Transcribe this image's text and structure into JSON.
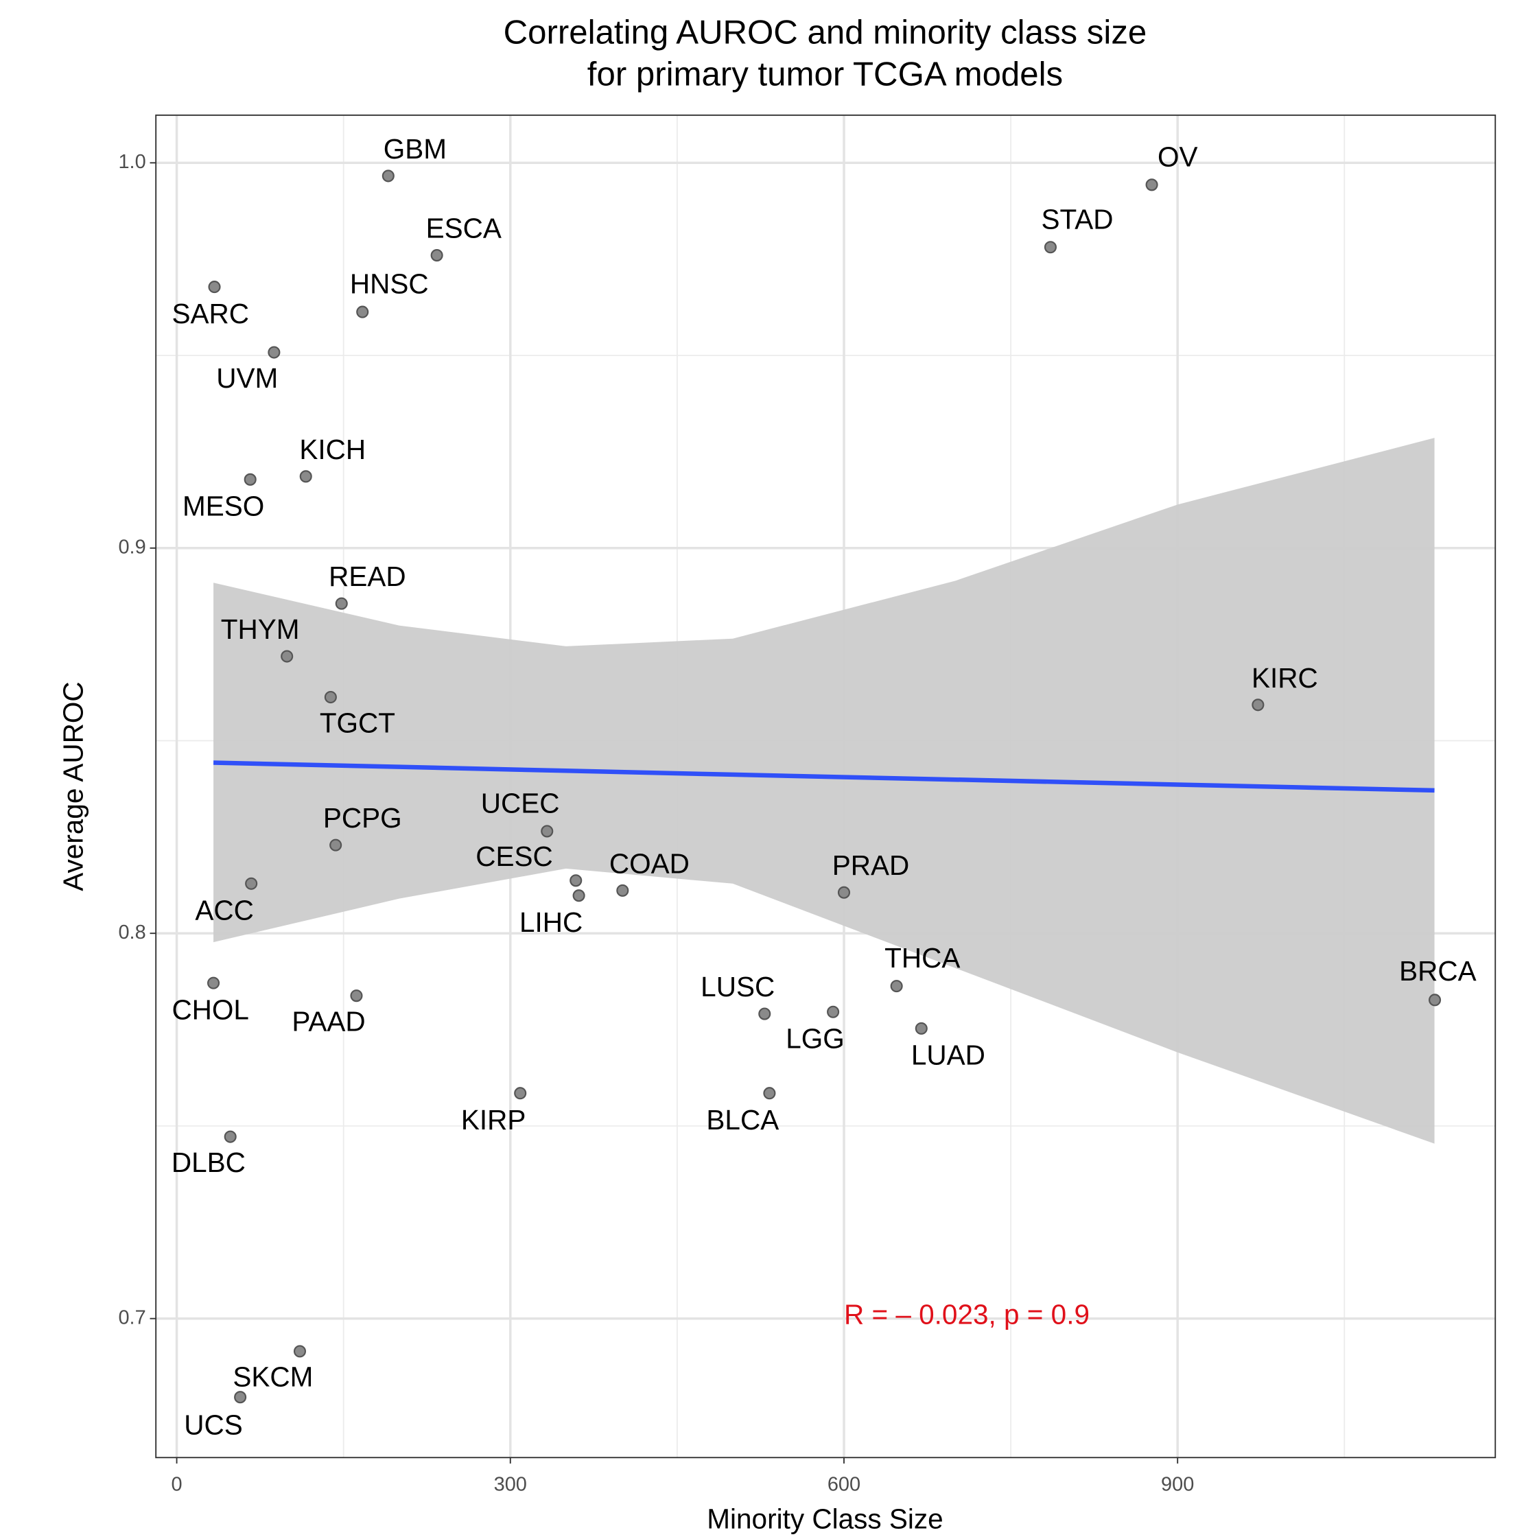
{
  "chart_data": {
    "type": "scatter",
    "title": [
      "Correlating AUROC and minority class size",
      "for primary tumor TCGA models"
    ],
    "x_label": "Minority Class Size",
    "y_label": "Average AUROC",
    "annotation": "R = – 0.023, p = 0.9",
    "xlim": [
      -18.75,
      1185.7
    ],
    "ylim": [
      0.66392,
      1.01237
    ],
    "xticks": [
      0,
      300,
      600,
      900
    ],
    "x_minor_ticks": [
      150,
      450,
      750,
      1050
    ],
    "yticks": [
      {
        "value": 0.7,
        "label": "0.7"
      },
      0.8,
      0.9,
      {
        "value": 1.0,
        "label": "1.0"
      }
    ],
    "y_minor_ticks": [
      0.75,
      0.85,
      0.95
    ],
    "grid": true,
    "point_color": "#8a8a8a",
    "line_color": "#3050f8",
    "band_color": "#cccccc",
    "points": [
      {
        "label": "GBM",
        "x": 190.2,
        "y": 0.9966
      },
      {
        "label": "ESCA",
        "x": 233.9,
        "y": 0.976
      },
      {
        "label": "OV",
        "x": 876.8,
        "y": 0.9943
      },
      {
        "label": "STAD",
        "x": 785.7,
        "y": 0.9781
      },
      {
        "label": "SARC",
        "x": 33.9,
        "y": 0.9678
      },
      {
        "label": "HNSC",
        "x": 167,
        "y": 0.9613
      },
      {
        "label": "UVM",
        "x": 87.5,
        "y": 0.9508
      },
      {
        "label": "KICH",
        "x": 116.1,
        "y": 0.9186
      },
      {
        "label": "MESO",
        "x": 66.1,
        "y": 0.9178
      },
      {
        "label": "READ",
        "x": 148.2,
        "y": 0.8856
      },
      {
        "label": "THYM",
        "x": 99.1,
        "y": 0.8719
      },
      {
        "label": "TGCT",
        "x": 138.4,
        "y": 0.8613
      },
      {
        "label": "KIRC",
        "x": 972.3,
        "y": 0.8593
      },
      {
        "label": "UCEC",
        "x": 333,
        "y": 0.8265
      },
      {
        "label": "PCPG",
        "x": 142.9,
        "y": 0.8229
      },
      {
        "label": "CESC",
        "x": 358.9,
        "y": 0.8137
      },
      {
        "label": "LIHC",
        "x": 361.6,
        "y": 0.8098
      },
      {
        "label": "COAD",
        "x": 400.9,
        "y": 0.8111
      },
      {
        "label": "PRAD",
        "x": 600,
        "y": 0.8106
      },
      {
        "label": "ACC",
        "x": 67,
        "y": 0.8129
      },
      {
        "label": "CHOL",
        "x": 33,
        "y": 0.7871
      },
      {
        "label": "PAAD",
        "x": 161.6,
        "y": 0.7838
      },
      {
        "label": "THCA",
        "x": 647.3,
        "y": 0.7863
      },
      {
        "label": "BRCA",
        "x": 1131.3,
        "y": 0.7827
      },
      {
        "label": "LUSC",
        "x": 528.6,
        "y": 0.7791
      },
      {
        "label": "LGG",
        "x": 590.2,
        "y": 0.7796
      },
      {
        "label": "LUAD",
        "x": 669.6,
        "y": 0.7753
      },
      {
        "label": "KIRP",
        "x": 308.9,
        "y": 0.7585
      },
      {
        "label": "BLCA",
        "x": 533,
        "y": 0.7585
      },
      {
        "label": "DLBC",
        "x": 48.2,
        "y": 0.7472
      },
      {
        "label": "SKCM",
        "x": 110.7,
        "y": 0.6915
      },
      {
        "label": "UCS",
        "x": 57.1,
        "y": 0.6796
      }
    ],
    "fit": {
      "x": [
        33,
        200,
        350,
        500,
        700,
        900,
        1131
      ],
      "y": [
        0.8443,
        0.8432,
        0.8422,
        0.8412,
        0.8399,
        0.8386,
        0.8371
      ],
      "upper": [
        0.891,
        0.8799,
        0.8745,
        0.8765,
        0.8915,
        0.9113,
        0.9286
      ],
      "lower": [
        0.7977,
        0.809,
        0.8168,
        0.8129,
        0.791,
        0.7691,
        0.7454
      ]
    }
  }
}
